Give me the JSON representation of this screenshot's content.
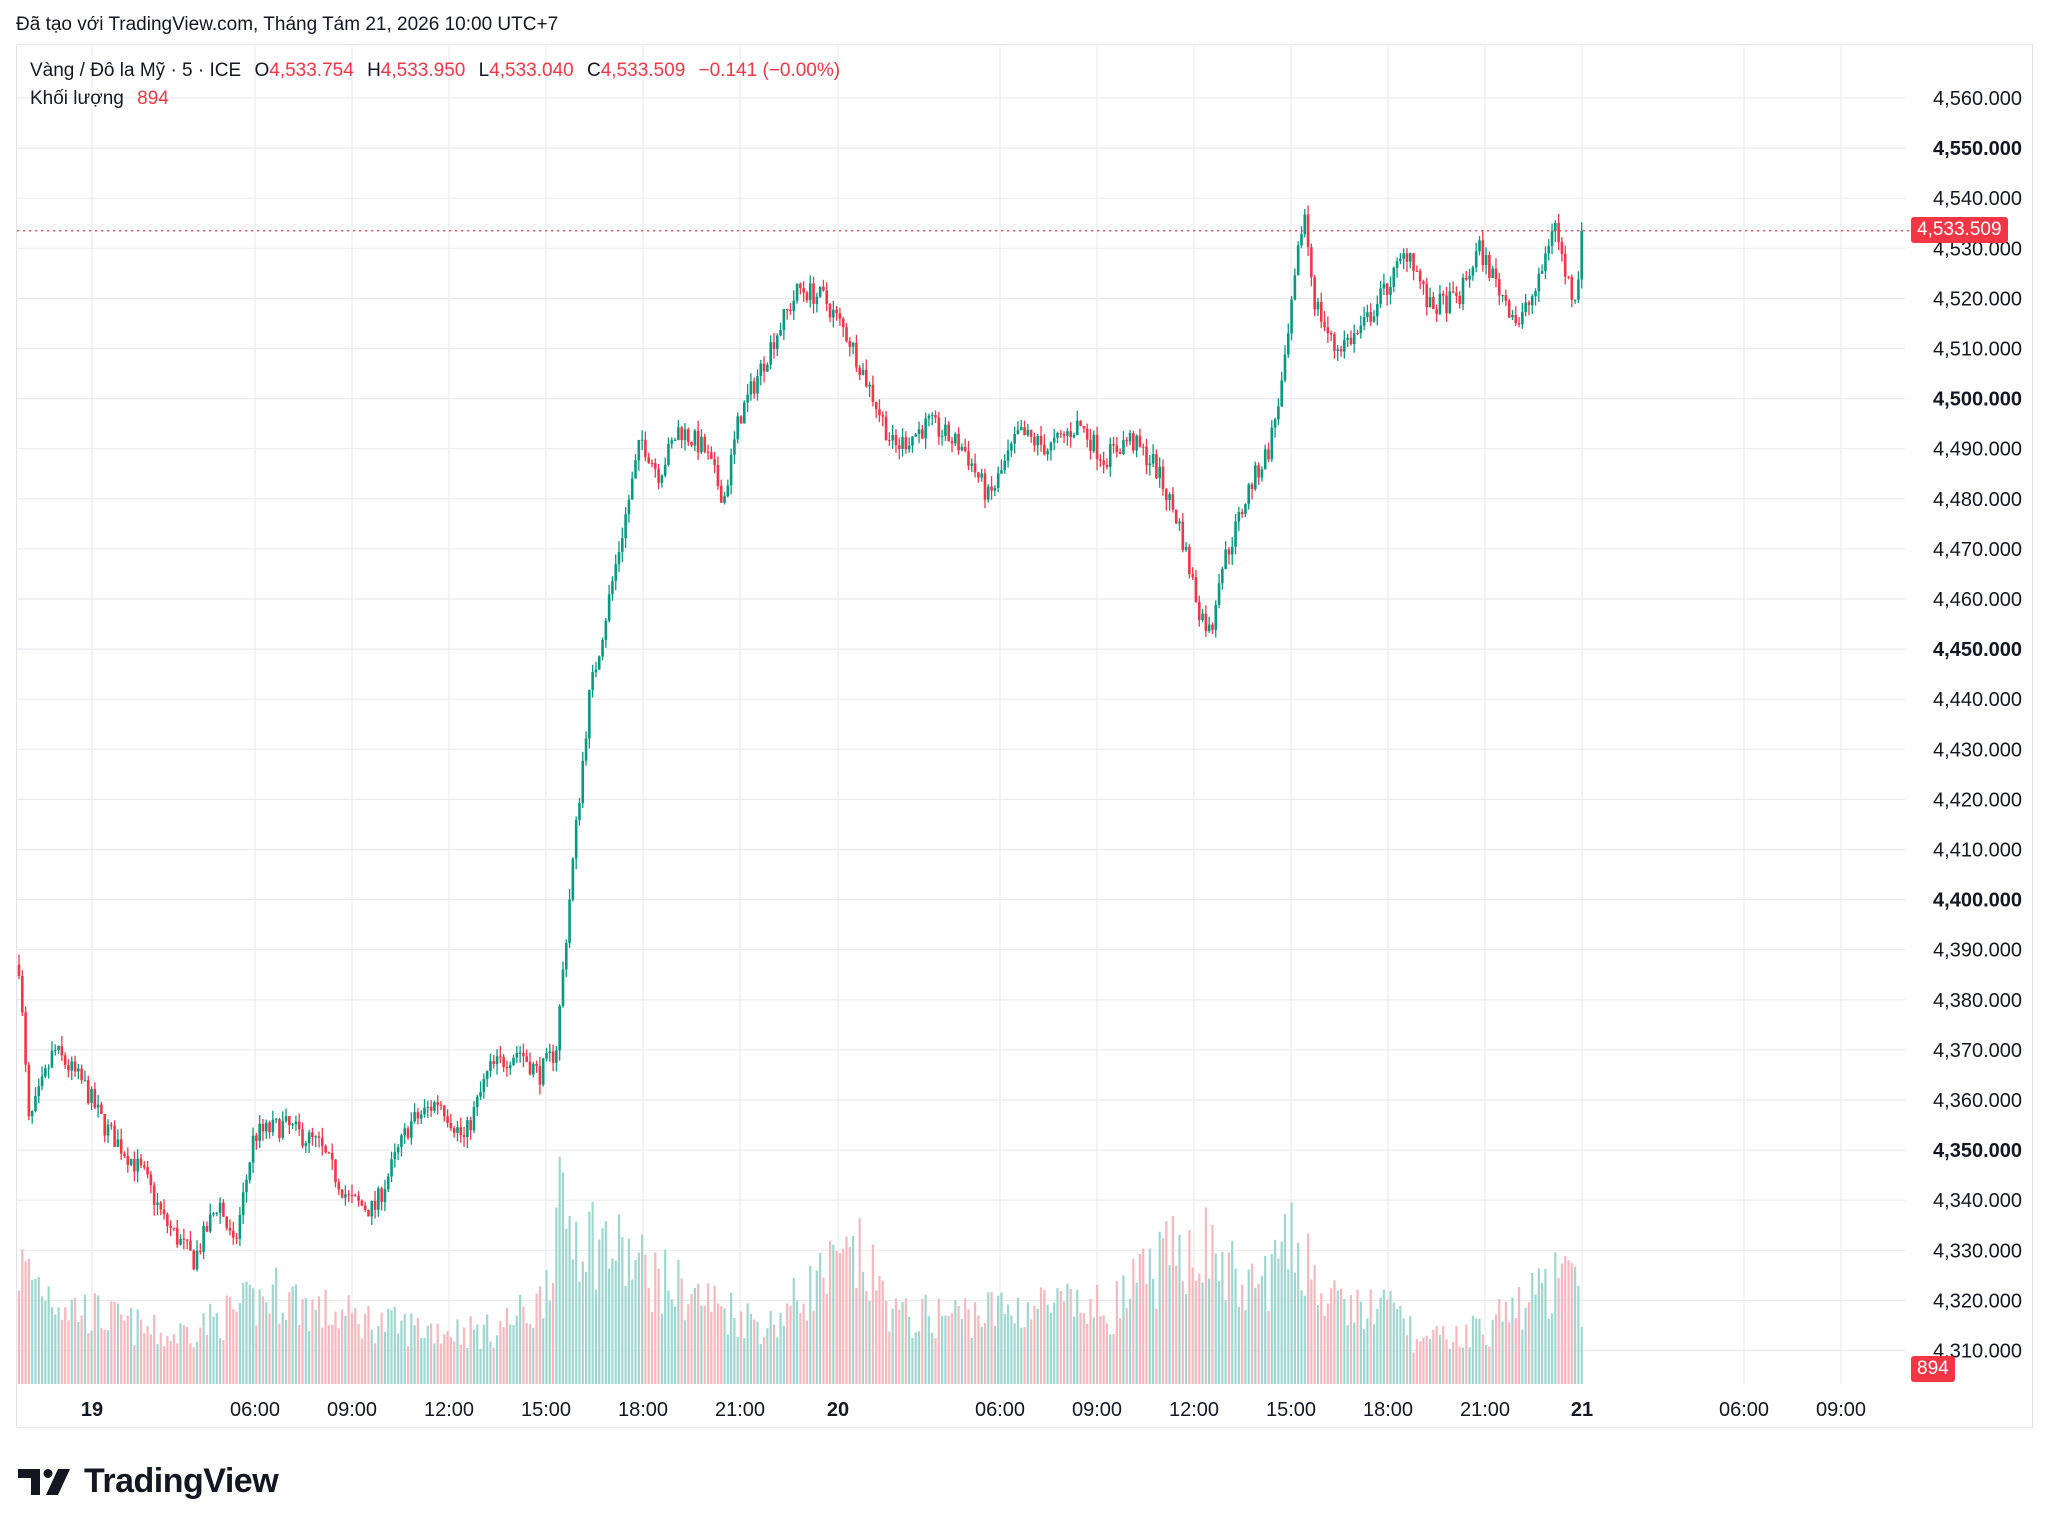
{
  "header": {
    "note": "Đã tạo với TradingView.com, Tháng Tám 21, 2026 10:00 UTC+7"
  },
  "legend": {
    "symbol": "Vàng / Đô la Mỹ · 5 · ICE",
    "o_label": "O",
    "o_value": "4,533.754",
    "h_label": "H",
    "h_value": "4,533.950",
    "l_label": "L",
    "l_value": "4,533.040",
    "c_label": "C",
    "c_value": "4,533.509",
    "change": "−0.141 (−0.00%)",
    "volume_label": "Khối lượng",
    "volume_value": "894"
  },
  "brand": {
    "name": "TradingView"
  },
  "colors": {
    "up": "#089981",
    "down": "#f23645",
    "up_vol": "#9ed7d0",
    "down_vol": "#f7b8bd",
    "grid": "#e9ebef"
  },
  "chart_data": {
    "type": "candlestick",
    "title": "",
    "price_tick_labels": [
      "4,560.000",
      "4,550.000",
      "4,540.000",
      "4,530.000",
      "4,520.000",
      "4,510.000",
      "4,500.000",
      "4,490.000",
      "4,480.000",
      "4,470.000",
      "4,460.000",
      "4,450.000",
      "4,440.000",
      "4,430.000",
      "4,420.000",
      "4,410.000",
      "4,400.000",
      "4,390.000",
      "4,380.000",
      "4,370.000",
      "4,360.000",
      "4,350.000",
      "4,340.000",
      "4,330.000",
      "4,320.000",
      "4,310.000"
    ],
    "bold_ticks": [
      "4,550.000",
      "4,500.000",
      "4,450.000",
      "4,400.000",
      "4,350.000"
    ],
    "ylim": [
      4303,
      4569
    ],
    "time_tick_labels": [
      "19",
      "06:00",
      "09:00",
      "12:00",
      "15:00",
      "18:00",
      "21:00",
      "20",
      "06:00",
      "09:00",
      "12:00",
      "15:00",
      "18:00",
      "21:00",
      "21",
      "06:00",
      "09:00"
    ],
    "bold_time_ticks": [
      "19",
      "20",
      "21"
    ],
    "last_price": 4533.509,
    "last_price_label": "4,533.509",
    "last_volume_label": "894",
    "price_path": [
      {
        "x": 0,
        "y": 4387
      },
      {
        "x": 10,
        "y": 4355
      },
      {
        "x": 35,
        "y": 4370
      },
      {
        "x": 65,
        "y": 4363
      },
      {
        "x": 85,
        "y": 4355
      },
      {
        "x": 125,
        "y": 4345
      },
      {
        "x": 145,
        "y": 4336
      },
      {
        "x": 175,
        "y": 4328
      },
      {
        "x": 200,
        "y": 4340
      },
      {
        "x": 215,
        "y": 4330
      },
      {
        "x": 235,
        "y": 4353
      },
      {
        "x": 265,
        "y": 4355
      },
      {
        "x": 300,
        "y": 4351
      },
      {
        "x": 330,
        "y": 4340
      },
      {
        "x": 355,
        "y": 4338
      },
      {
        "x": 390,
        "y": 4355
      },
      {
        "x": 420,
        "y": 4360
      },
      {
        "x": 445,
        "y": 4352
      },
      {
        "x": 470,
        "y": 4366
      },
      {
        "x": 500,
        "y": 4370
      },
      {
        "x": 520,
        "y": 4365
      },
      {
        "x": 537,
        "y": 4370
      },
      {
        "x": 555,
        "y": 4410
      },
      {
        "x": 570,
        "y": 4440
      },
      {
        "x": 590,
        "y": 4460
      },
      {
        "x": 605,
        "y": 4475
      },
      {
        "x": 622,
        "y": 4492
      },
      {
        "x": 640,
        "y": 4485
      },
      {
        "x": 660,
        "y": 4494
      },
      {
        "x": 685,
        "y": 4490
      },
      {
        "x": 705,
        "y": 4480
      },
      {
        "x": 720,
        "y": 4496
      },
      {
        "x": 755,
        "y": 4512
      },
      {
        "x": 780,
        "y": 4522
      },
      {
        "x": 805,
        "y": 4520
      },
      {
        "x": 830,
        "y": 4512
      },
      {
        "x": 855,
        "y": 4500
      },
      {
        "x": 875,
        "y": 4490
      },
      {
        "x": 910,
        "y": 4495
      },
      {
        "x": 945,
        "y": 4490
      },
      {
        "x": 970,
        "y": 4480
      },
      {
        "x": 1000,
        "y": 4493
      },
      {
        "x": 1030,
        "y": 4490
      },
      {
        "x": 1060,
        "y": 4495
      },
      {
        "x": 1085,
        "y": 4488
      },
      {
        "x": 1110,
        "y": 4492
      },
      {
        "x": 1135,
        "y": 4487
      },
      {
        "x": 1160,
        "y": 4475
      },
      {
        "x": 1180,
        "y": 4458
      },
      {
        "x": 1192,
        "y": 4453
      },
      {
        "x": 1200,
        "y": 4465
      },
      {
        "x": 1215,
        "y": 4473
      },
      {
        "x": 1230,
        "y": 4482
      },
      {
        "x": 1250,
        "y": 4490
      },
      {
        "x": 1265,
        "y": 4505
      },
      {
        "x": 1280,
        "y": 4530
      },
      {
        "x": 1285,
        "y": 4538
      },
      {
        "x": 1295,
        "y": 4520
      },
      {
        "x": 1315,
        "y": 4510
      },
      {
        "x": 1340,
        "y": 4513
      },
      {
        "x": 1370,
        "y": 4523
      },
      {
        "x": 1390,
        "y": 4530
      },
      {
        "x": 1410,
        "y": 4518
      },
      {
        "x": 1440,
        "y": 4520
      },
      {
        "x": 1460,
        "y": 4530
      },
      {
        "x": 1480,
        "y": 4522
      },
      {
        "x": 1500,
        "y": 4515
      },
      {
        "x": 1520,
        "y": 4523
      },
      {
        "x": 1535,
        "y": 4536
      },
      {
        "x": 1545,
        "y": 4526
      },
      {
        "x": 1555,
        "y": 4520
      },
      {
        "x": 1566,
        "y": 4532
      }
    ],
    "volume_path": [
      {
        "x": 0,
        "y": 0.45
      },
      {
        "x": 50,
        "y": 0.3
      },
      {
        "x": 150,
        "y": 0.18
      },
      {
        "x": 200,
        "y": 0.25
      },
      {
        "x": 260,
        "y": 0.35
      },
      {
        "x": 300,
        "y": 0.28
      },
      {
        "x": 380,
        "y": 0.22
      },
      {
        "x": 470,
        "y": 0.2
      },
      {
        "x": 520,
        "y": 0.3
      },
      {
        "x": 540,
        "y": 0.65
      },
      {
        "x": 600,
        "y": 0.5
      },
      {
        "x": 650,
        "y": 0.38
      },
      {
        "x": 700,
        "y": 0.3
      },
      {
        "x": 750,
        "y": 0.22
      },
      {
        "x": 800,
        "y": 0.4
      },
      {
        "x": 840,
        "y": 0.48
      },
      {
        "x": 880,
        "y": 0.25
      },
      {
        "x": 950,
        "y": 0.27
      },
      {
        "x": 1020,
        "y": 0.3
      },
      {
        "x": 1090,
        "y": 0.28
      },
      {
        "x": 1140,
        "y": 0.45
      },
      {
        "x": 1180,
        "y": 0.55
      },
      {
        "x": 1230,
        "y": 0.35
      },
      {
        "x": 1280,
        "y": 0.55
      },
      {
        "x": 1310,
        "y": 0.3
      },
      {
        "x": 1380,
        "y": 0.28
      },
      {
        "x": 1400,
        "y": 0.15
      },
      {
        "x": 1470,
        "y": 0.22
      },
      {
        "x": 1500,
        "y": 0.3
      },
      {
        "x": 1540,
        "y": 0.4
      },
      {
        "x": 1566,
        "y": 0.32
      }
    ],
    "candle_count": 475
  }
}
